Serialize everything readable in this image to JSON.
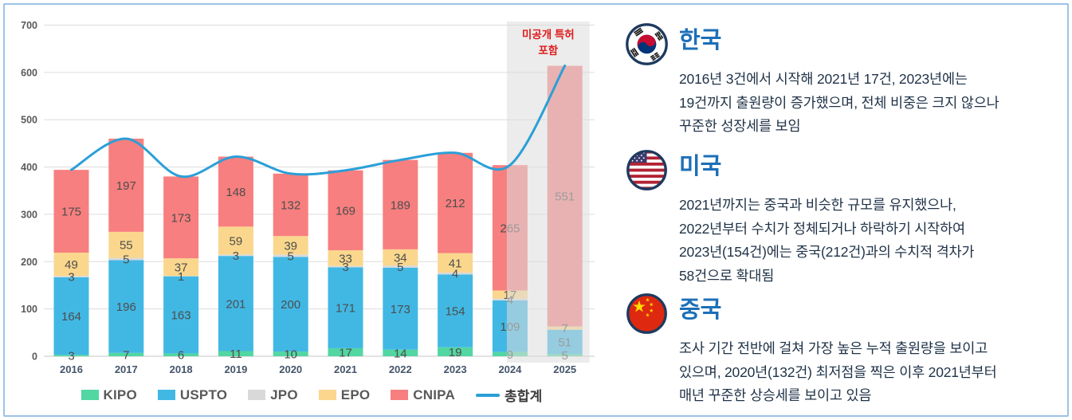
{
  "theme": {
    "title_blue": "#1D6FB8",
    "annotation_red": "#E01A1A",
    "border_blue": "#9CC2E5",
    "grid_gray": "#DCDCDC",
    "band_gray": "#DCDCDC"
  },
  "chart_data": {
    "type": "bar",
    "stacked": true,
    "categories": [
      "2016",
      "2017",
      "2018",
      "2019",
      "2020",
      "2021",
      "2022",
      "2023",
      "2024",
      "2025"
    ],
    "series": [
      {
        "name": "KIPO",
        "color": "#52D6A2",
        "values": [
          3,
          7,
          6,
          11,
          10,
          17,
          14,
          19,
          9,
          5
        ]
      },
      {
        "name": "USPTO",
        "color": "#41B8E4",
        "values": [
          164,
          196,
          163,
          201,
          200,
          171,
          173,
          154,
          109,
          51
        ]
      },
      {
        "name": "JPO",
        "color": "#D9D9D9",
        "values": [
          3,
          5,
          1,
          3,
          5,
          3,
          5,
          4,
          4,
          0
        ]
      },
      {
        "name": "EPO",
        "color": "#FAD78D",
        "values": [
          49,
          55,
          37,
          59,
          39,
          33,
          34,
          41,
          17,
          7
        ]
      },
      {
        "name": "CNIPA",
        "color": "#F87F7F",
        "values": [
          175,
          197,
          173,
          148,
          132,
          169,
          189,
          212,
          265,
          551
        ]
      }
    ],
    "line": {
      "name": "총합계",
      "color": "#2B9FD8",
      "values": [
        394,
        460,
        380,
        422,
        386,
        393,
        415,
        430,
        404,
        614
      ]
    },
    "ylim": [
      0,
      700
    ],
    "yticks": [
      0,
      100,
      200,
      300,
      400,
      500,
      600,
      700
    ],
    "grid": true,
    "legend_position": "bottom",
    "annotation": {
      "lines": [
        "미공개 특허",
        "포함"
      ],
      "color": "#E01A1A",
      "band_start_category": "2024",
      "band_end_category": "2025"
    }
  },
  "panels": [
    {
      "title": "한국",
      "flag": "korea",
      "body_lines": [
        "2016년 3건에서 시작해 2021년 17건, 2023년에는",
        "19건까지 출원량이 증가했으며, 전체 비중은 크지 않으나",
        "꾸준한 성장세를 보임"
      ]
    },
    {
      "title": "미국",
      "flag": "usa",
      "body_lines": [
        "2021년까지는 중국과 비슷한 규모를 유지했으나,",
        "2022년부터 수치가 정체되거나 하락하기 시작하여",
        "2023년(154건)에는 중국(212건)과의 수치적 격차가",
        "58건으로 확대됨"
      ]
    },
    {
      "title": "중국",
      "flag": "china",
      "body_lines": [
        "조사 기간 전반에 걸쳐 가장 높은 누적 출원량을 보이고",
        "있으며, 2020년(132건) 최저점을 찍은 이후 2021년부터",
        "매년 꾸준한 상승세를 보이고 있음"
      ]
    }
  ]
}
